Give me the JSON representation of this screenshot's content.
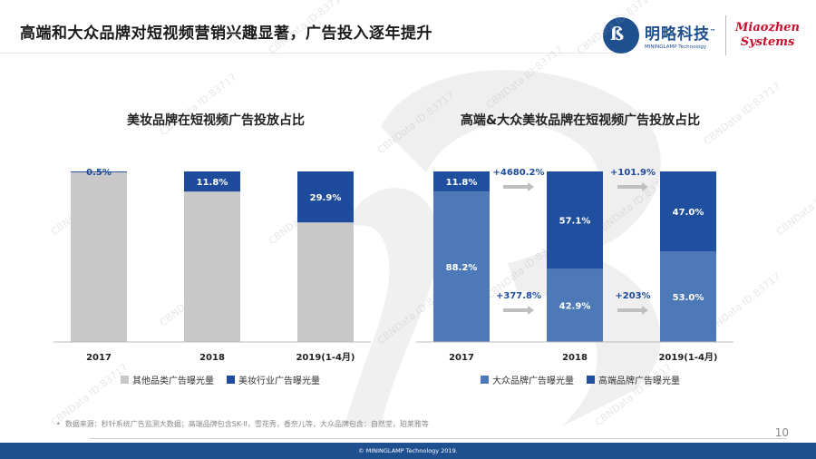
{
  "page": {
    "title": "高端和大众品牌对短视频营销兴趣显著，广告投入逐年提升",
    "logo": {
      "cn": "明略科技",
      "tm": "™",
      "en": "MININGLAMP Technology",
      "mz_line1": "Miaozhen",
      "mz_line2": "Systems"
    },
    "watermark": "CBNData ID:83717",
    "source": "数据来源：秒针系统广告监测大数据；高端品牌包含SK-II，雪花秀，香奈儿等，大众品牌包含：自然堂，珀莱雅等",
    "page_number": "10",
    "footer": "© MININGLAMP Technology 2019."
  },
  "colors": {
    "gray": "#c8c8c8",
    "navy": "#1e4b9b",
    "mid_blue": "#4e79b8",
    "dark_blue": "#1f4f9e"
  },
  "chart_data": [
    {
      "type": "bar",
      "stacked": true,
      "title": "美妆品牌在短视频广告投放占比",
      "categories": [
        "2017",
        "2018",
        "2019(1-4月)"
      ],
      "series": [
        {
          "name": "其他品类广告曝光量",
          "values": [
            99.5,
            88.2,
            70.1
          ],
          "color": "gray"
        },
        {
          "name": "美妆行业广告曝光量",
          "values": [
            0.5,
            11.8,
            29.9
          ],
          "labels": [
            "0.5%",
            "11.8%",
            "29.9%"
          ],
          "color": "navy"
        }
      ],
      "ylim": [
        0,
        100
      ]
    },
    {
      "type": "bar",
      "stacked": true,
      "title": "高端&大众美妆品牌在短视频广告投放占比",
      "categories": [
        "2017",
        "2018",
        "2019(1-4月)"
      ],
      "series": [
        {
          "name": "大众品牌广告曝光量",
          "values": [
            88.2,
            42.9,
            53.0
          ],
          "labels": [
            "88.2%",
            "42.9%",
            "53.0%"
          ],
          "color": "mid_blue"
        },
        {
          "name": "高端品牌广告曝光量",
          "values": [
            11.8,
            57.1,
            47.0
          ],
          "labels": [
            "11.8%",
            "57.1%",
            "47.0%"
          ],
          "color": "dark_blue"
        }
      ],
      "growth_annotations": {
        "high_end": [
          "+4680.2%",
          "+101.9%"
        ],
        "mass": [
          "+377.8%",
          "+203%"
        ]
      },
      "ylim": [
        0,
        100
      ]
    }
  ]
}
